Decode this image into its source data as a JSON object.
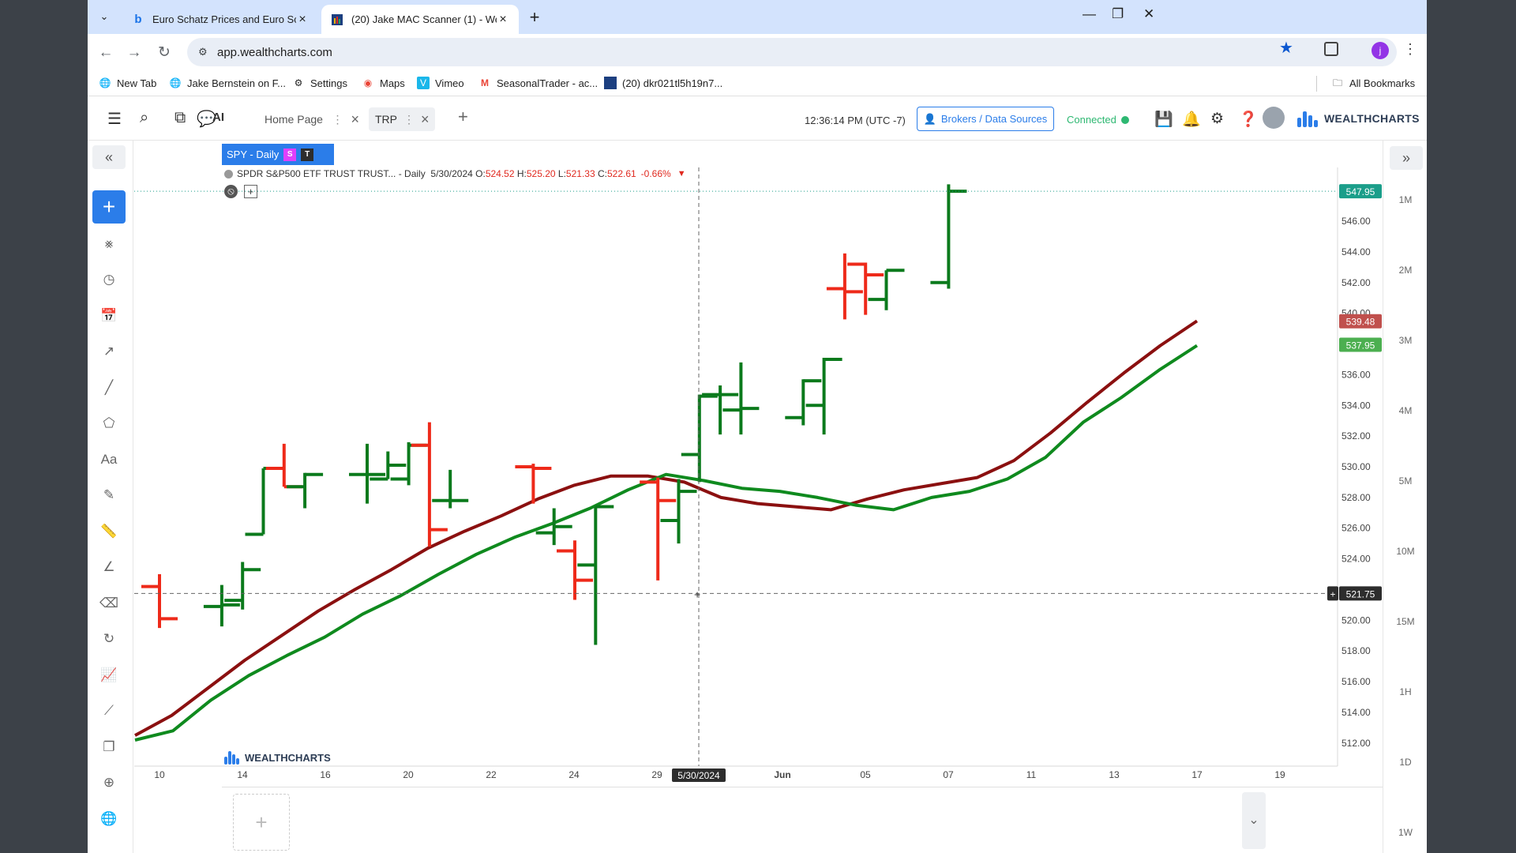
{
  "browser": {
    "tabs": [
      {
        "favicon": "bing-icon",
        "title": "Euro Schatz Prices and Euro Sc",
        "active": false
      },
      {
        "favicon": "wealthcharts-icon",
        "title": "(20) Jake MAC Scanner (1) - We",
        "active": true
      }
    ],
    "url": "app.wealthcharts.com",
    "profile_initial": "j",
    "bookmarks": [
      "New Tab",
      "Jake Bernstein on F...",
      "Settings",
      "Maps",
      "Vimeo",
      "SeasonalTrader - ac...",
      "(20) dkr021tl5h19n7..."
    ],
    "all_bookmarks": "All Bookmarks"
  },
  "app": {
    "ai_label": "AI",
    "tabs": [
      {
        "label": "Home Page",
        "active": false
      },
      {
        "label": "TRP",
        "active": true
      }
    ],
    "clock": "12:36:14 PM  (UTC -7)",
    "brokers_button": "Brokers / Data Sources",
    "connection_status": "Connected",
    "logo_text": "WEALTHCHARTS"
  },
  "chart_header": {
    "symbol_tab": "SPY - Daily",
    "badge_s": "S",
    "badge_t": "T",
    "description": "SPDR S&P500 ETF TRUST TRUST... - Daily",
    "date": "5/30/2024",
    "open_label": "O:",
    "open": "524.52",
    "high_label": "H:",
    "high": "525.20",
    "low_label": "L:",
    "low": "521.33",
    "close_label": "C:",
    "close": "522.61",
    "change": "-0.66%"
  },
  "timeframes": [
    "1M",
    "2M",
    "3M",
    "4M",
    "5M",
    "10M",
    "15M",
    "1H",
    "1D",
    "1W"
  ],
  "colors": {
    "up": "#0b7a1c",
    "down": "#ee2a1a",
    "ma_fast": "#8b1010",
    "ma_slow": "#0f8a1e",
    "accent": "#2b7de9"
  },
  "chart_data": {
    "type": "ohlc",
    "ylim": [
      510.5,
      549.5
    ],
    "y_ticks": [
      "546.00",
      "544.00",
      "542.00",
      "540.00",
      "536.00",
      "534.00",
      "532.00",
      "530.00",
      "528.00",
      "526.00",
      "524.00",
      "520.00",
      "518.00",
      "516.00",
      "514.00",
      "512.00"
    ],
    "x_ticks": [
      "10",
      "14",
      "16",
      "20",
      "22",
      "24",
      "29",
      "Jun",
      "05",
      "07",
      "11",
      "13",
      "17",
      "19"
    ],
    "crosshair": {
      "date_label": "5/30/2024",
      "price_label": "521.75"
    },
    "price_tags": [
      {
        "label": "547.95",
        "color": "#1b9e8a"
      },
      {
        "label": "539.48",
        "color": "#c0504d"
      },
      {
        "label": "537.95",
        "color": "#4caf50"
      }
    ],
    "bars": [
      {
        "date": "2024-05-10",
        "o": 522.2,
        "h": 523.0,
        "l": 519.5,
        "c": 520.1
      },
      {
        "date": "2024-05-13",
        "o": 520.9,
        "h": 522.3,
        "l": 519.6,
        "c": 521.0
      },
      {
        "date": "2024-05-14",
        "o": 521.3,
        "h": 523.8,
        "l": 520.7,
        "c": 523.3
      },
      {
        "date": "2024-05-15",
        "o": 525.6,
        "h": 529.9,
        "l": 525.6,
        "c": 529.9
      },
      {
        "date": "2024-05-16",
        "o": 529.9,
        "h": 531.5,
        "l": 528.7,
        "c": 528.7
      },
      {
        "date": "2024-05-17",
        "o": 528.7,
        "h": 529.6,
        "l": 527.3,
        "c": 529.5
      },
      {
        "date": "2024-05-20",
        "o": 529.5,
        "h": 531.5,
        "l": 527.6,
        "c": 529.5
      },
      {
        "date": "2024-05-21",
        "o": 529.2,
        "h": 531.0,
        "l": 529.2,
        "c": 530.1
      },
      {
        "date": "2024-05-22",
        "o": 529.2,
        "h": 531.6,
        "l": 528.8,
        "c": 531.4
      },
      {
        "date": "2024-05-23",
        "o": 531.4,
        "h": 532.9,
        "l": 524.8,
        "c": 525.9
      },
      {
        "date": "2024-05-24",
        "o": 527.8,
        "h": 529.8,
        "l": 527.3,
        "c": 527.8
      },
      {
        "date": "2024-05-28",
        "o": 530.0,
        "h": 530.2,
        "l": 527.6,
        "c": 529.9
      },
      {
        "date": "2024-05-29",
        "o": 525.7,
        "h": 527.3,
        "l": 524.9,
        "c": 526.1
      },
      {
        "date": "2024-05-30",
        "o": 524.52,
        "h": 525.2,
        "l": 521.33,
        "c": 522.61
      },
      {
        "date": "2024-05-31",
        "o": 523.6,
        "h": 527.4,
        "l": 518.4,
        "c": 527.4
      },
      {
        "date": "2024-06-03",
        "o": 529.0,
        "h": 529.3,
        "l": 522.6,
        "c": 527.8
      },
      {
        "date": "2024-06-04",
        "o": 526.5,
        "h": 529.2,
        "l": 525.0,
        "c": 528.4
      },
      {
        "date": "2024-06-05",
        "o": 530.8,
        "h": 534.7,
        "l": 529.0,
        "c": 534.6
      },
      {
        "date": "2024-06-06",
        "o": 534.7,
        "h": 535.3,
        "l": 532.1,
        "c": 534.7
      },
      {
        "date": "2024-06-07",
        "o": 533.7,
        "h": 536.8,
        "l": 532.1,
        "c": 533.8
      },
      {
        "date": "2024-06-10",
        "o": 533.2,
        "h": 535.7,
        "l": 532.7,
        "c": 535.6
      },
      {
        "date": "2024-06-11",
        "o": 534.0,
        "h": 537.1,
        "l": 532.1,
        "c": 537.0
      },
      {
        "date": "2024-06-12",
        "o": 541.6,
        "h": 543.9,
        "l": 539.6,
        "c": 541.4
      },
      {
        "date": "2024-06-13",
        "o": 543.2,
        "h": 543.3,
        "l": 539.9,
        "c": 542.5
      },
      {
        "date": "2024-06-14",
        "o": 540.9,
        "h": 542.8,
        "l": 540.2,
        "c": 542.8
      },
      {
        "date": "2024-06-17",
        "o": 542.0,
        "h": 548.4,
        "l": 541.6,
        "c": 547.95
      }
    ],
    "series": [
      {
        "values": [
          512.5,
          513.8,
          515.6,
          517.4,
          519.0,
          520.6,
          522.0,
          523.3,
          524.7,
          525.8,
          526.8,
          527.9,
          528.8,
          529.4,
          529.4,
          529.0,
          528.0,
          527.6,
          527.4,
          527.2,
          527.9,
          528.5,
          528.9,
          529.3,
          530.4,
          532.2,
          534.2,
          536.1,
          537.9,
          539.5
        ]
      },
      {
        "values": [
          512.2,
          512.8,
          514.8,
          516.4,
          517.7,
          518.9,
          520.4,
          521.6,
          523.0,
          524.3,
          525.4,
          526.3,
          527.3,
          528.5,
          529.5,
          529.1,
          528.6,
          528.4,
          528.0,
          527.5,
          527.2,
          528.0,
          528.4,
          529.2,
          530.6,
          532.9,
          534.5,
          536.3,
          537.9
        ]
      }
    ]
  }
}
